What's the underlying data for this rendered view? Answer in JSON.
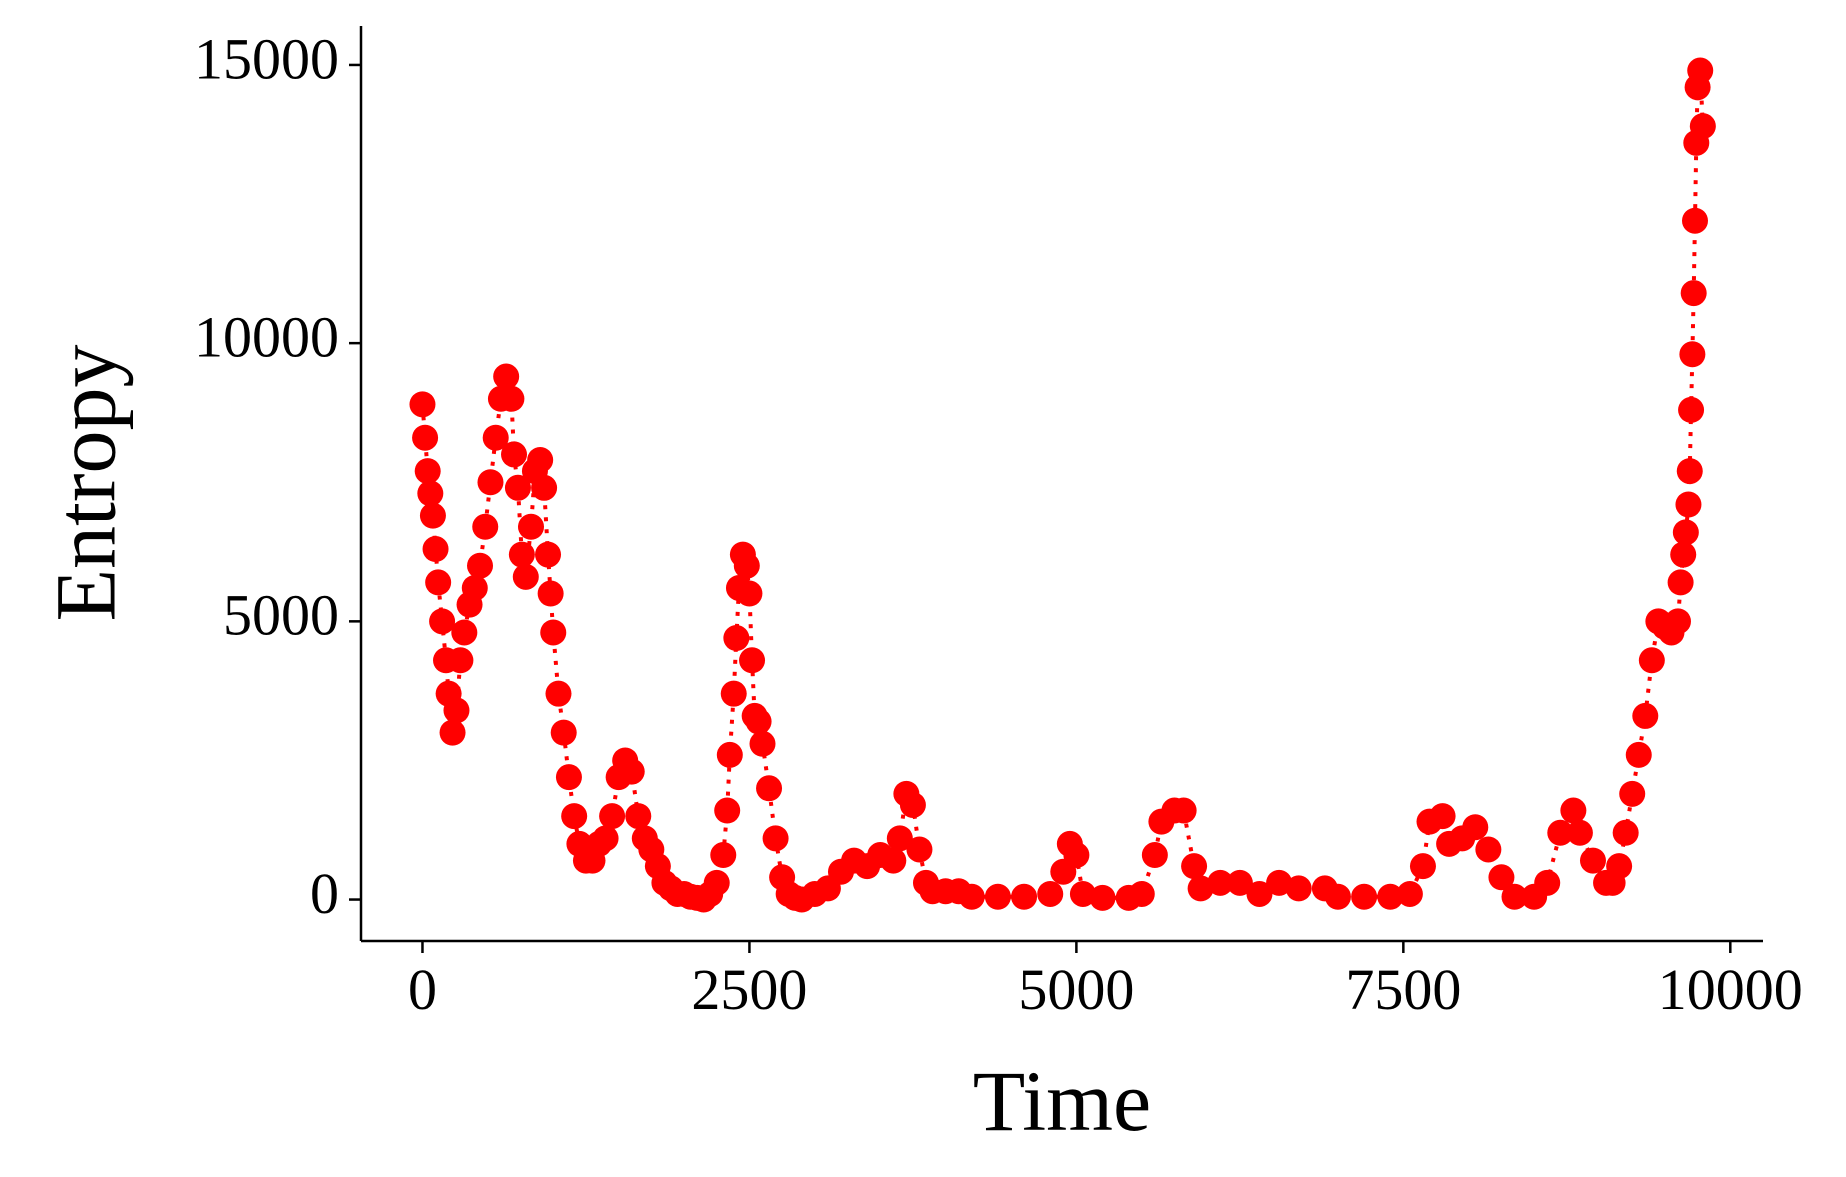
{
  "chart_data": {
    "type": "line",
    "x_label": "Time",
    "y_label": "Entropy",
    "color": "#ff0000",
    "linestyle": "dotted",
    "markers": true,
    "xlim": [
      -470,
      10250
    ],
    "ylim": [
      -745,
      15700
    ],
    "xticks": [
      0,
      2500,
      5000,
      7500,
      10000
    ],
    "yticks": [
      0,
      5000,
      10000,
      15000
    ],
    "x": [
      0,
      20,
      40,
      60,
      80,
      100,
      120,
      150,
      180,
      200,
      230,
      260,
      290,
      320,
      360,
      400,
      440,
      480,
      520,
      560,
      600,
      640,
      680,
      700,
      730,
      760,
      790,
      830,
      860,
      900,
      930,
      960,
      980,
      1000,
      1040,
      1080,
      1120,
      1160,
      1200,
      1250,
      1300,
      1350,
      1400,
      1450,
      1500,
      1550,
      1600,
      1650,
      1700,
      1750,
      1800,
      1850,
      1900,
      1950,
      2000,
      2050,
      2100,
      2150,
      2200,
      2250,
      2300,
      2330,
      2350,
      2380,
      2400,
      2420,
      2450,
      2480,
      2500,
      2520,
      2540,
      2570,
      2600,
      2650,
      2700,
      2750,
      2800,
      2850,
      2900,
      3000,
      3100,
      3200,
      3300,
      3400,
      3500,
      3600,
      3650,
      3700,
      3750,
      3800,
      3850,
      3900,
      4000,
      4100,
      4200,
      4400,
      4600,
      4800,
      4900,
      4950,
      5000,
      5050,
      5200,
      5400,
      5500,
      5600,
      5650,
      5750,
      5820,
      5900,
      5950,
      6100,
      6250,
      6400,
      6550,
      6700,
      6900,
      7000,
      7200,
      7400,
      7550,
      7650,
      7700,
      7800,
      7850,
      7950,
      8050,
      8150,
      8250,
      8350,
      8500,
      8600,
      8700,
      8800,
      8850,
      8950,
      9050,
      9100,
      9150,
      9200,
      9250,
      9300,
      9350,
      9400,
      9450,
      9500,
      9550,
      9600,
      9620,
      9640,
      9660,
      9680,
      9690,
      9700,
      9710,
      9720,
      9730,
      9740,
      9750,
      9770,
      9790
    ],
    "values": [
      8900,
      8300,
      7700,
      7300,
      6900,
      6300,
      5700,
      5000,
      4300,
      3700,
      3000,
      3400,
      4300,
      4800,
      5300,
      5600,
      6000,
      6700,
      7500,
      8300,
      9000,
      9400,
      9000,
      8000,
      7400,
      6200,
      5800,
      6700,
      7700,
      7900,
      7400,
      6200,
      5500,
      4800,
      3700,
      3000,
      2200,
      1500,
      1000,
      700,
      700,
      1000,
      1100,
      1500,
      2200,
      2500,
      2300,
      1500,
      1100,
      900,
      600,
      300,
      200,
      100,
      100,
      50,
      30,
      0,
      100,
      300,
      800,
      1600,
      2600,
      3700,
      4700,
      5600,
      6200,
      6000,
      5500,
      4300,
      3300,
      3200,
      2800,
      2000,
      1100,
      400,
      100,
      30,
      0,
      100,
      200,
      500,
      700,
      600,
      800,
      700,
      1100,
      1900,
      1700,
      900,
      300,
      150,
      150,
      150,
      50,
      50,
      50,
      100,
      500,
      1000,
      800,
      100,
      30,
      30,
      100,
      800,
      1400,
      1600,
      1600,
      600,
      200,
      300,
      300,
      100,
      300,
      200,
      200,
      50,
      50,
      50,
      100,
      600,
      1400,
      1500,
      1000,
      1100,
      1300,
      900,
      400,
      50,
      50,
      300,
      1200,
      1600,
      1200,
      700,
      300,
      300,
      600,
      1200,
      1900,
      2600,
      3300,
      4300,
      5000,
      4900,
      4800,
      5000,
      5700,
      6200,
      6600,
      7100,
      7700,
      8800,
      9800,
      10900,
      12200,
      13600,
      14600,
      14900,
      13900
    ]
  }
}
